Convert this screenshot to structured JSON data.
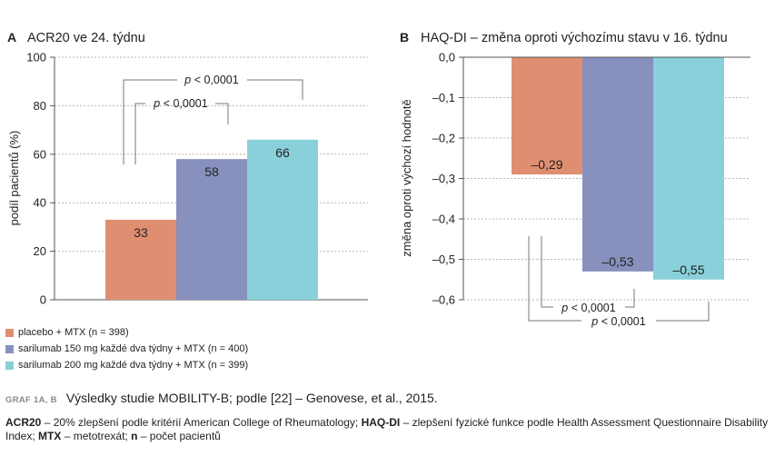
{
  "panels": [
    {
      "letter": "A",
      "title": "ACR20 ve 24. týdnu",
      "ylabel": "podíl pacientů (%)",
      "yticks": [
        "100",
        "80",
        "60",
        "40",
        "20",
        "0"
      ],
      "pvalues": [
        "p < 0,0001",
        "p < 0,0001"
      ]
    },
    {
      "letter": "B",
      "title": "HAQ-DI – změna oproti výchozímu stavu v 16. týdnu",
      "ylabel": "změna oproti výchozí hodnotě",
      "yticks": [
        "0,0",
        "–0,1",
        "–0,2",
        "–0,3",
        "–0,4",
        "–0,5",
        "–0,6"
      ],
      "pvalues": [
        "p < 0,0001",
        "p < 0,0001"
      ]
    }
  ],
  "legend": [
    {
      "label": "placebo + MTX (n = 398)",
      "color": "#e08e72"
    },
    {
      "label": "sarilumab 150 mg každé dva týdny + MTX (n = 400)",
      "color": "#8890be"
    },
    {
      "label": "sarilumab 200 mg každé dva týdny + MTX (n = 399)",
      "color": "#89d0da"
    }
  ],
  "caption": {
    "tag": "GRAF 1A, B",
    "title": "Výsledky studie MOBILITY-B; podle [22] – Genovese, et al., 2015.",
    "note_parts": [
      {
        "text": "ACR20",
        "bold": true
      },
      {
        "text": " – 20% zlepšení podle kritérií American College of Rheumatology; ",
        "bold": false
      },
      {
        "text": "HAQ-DI",
        "bold": true
      },
      {
        "text": " – zlepšení fyzické funkce podle Health Assessment Questionnaire Disability Index; ",
        "bold": false
      },
      {
        "text": "MTX",
        "bold": true
      },
      {
        "text": " – metotrexát; ",
        "bold": false
      },
      {
        "text": "n",
        "bold": true
      },
      {
        "text": " – počet pacientů",
        "bold": false
      }
    ]
  },
  "chart_data": [
    {
      "type": "bar",
      "title": "ACR20 ve 24. týdnu",
      "ylabel": "podíl pacientů (%)",
      "ylim": [
        0,
        100
      ],
      "grid": true,
      "series": [
        {
          "name": "placebo + MTX (n = 398)",
          "value": 33,
          "label": "33",
          "color": "#e08e72"
        },
        {
          "name": "sarilumab 150 mg každé dva týdny + MTX (n = 400)",
          "value": 58,
          "label": "58",
          "color": "#8890be"
        },
        {
          "name": "sarilumab 200 mg každé dva týdny + MTX (n = 399)",
          "value": 66,
          "label": "66",
          "color": "#89d0da"
        }
      ]
    },
    {
      "type": "bar",
      "title": "HAQ-DI – změna oproti výchozímu stavu v 16. týdnu",
      "ylabel": "změna oproti výchozí hodnotě",
      "ylim": [
        -0.6,
        0
      ],
      "grid": true,
      "series": [
        {
          "name": "placebo + MTX (n = 398)",
          "value": -0.29,
          "label": "–0,29",
          "color": "#e08e72"
        },
        {
          "name": "sarilumab 150 mg každé dva týdny + MTX (n = 400)",
          "value": -0.53,
          "label": "–0,53",
          "color": "#8890be"
        },
        {
          "name": "sarilumab 200 mg každé dva týdny + MTX (n = 399)",
          "value": -0.55,
          "label": "–0,55",
          "color": "#89d0da"
        }
      ]
    }
  ]
}
